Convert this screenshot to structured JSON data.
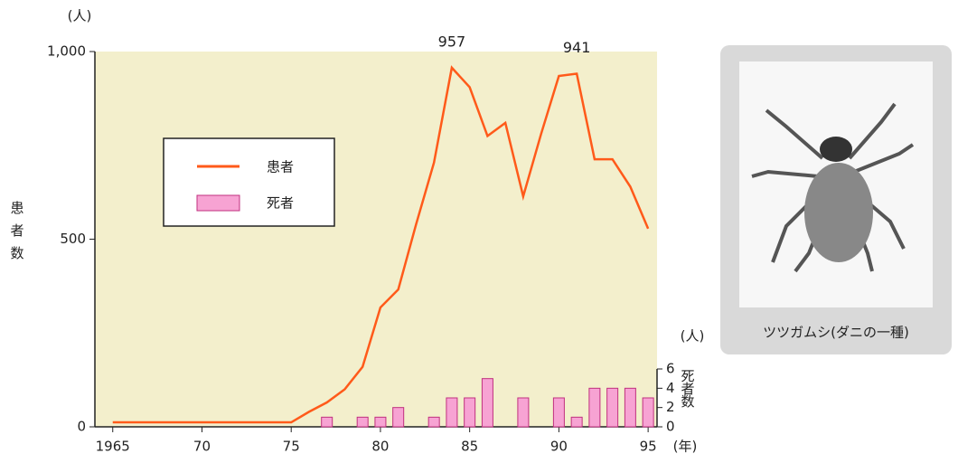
{
  "chart_data": {
    "type": "line-bar",
    "y_unit": "(人)",
    "y2_unit": "(人)",
    "ylabel": "患者数",
    "y2label": "死者数",
    "xlabel": "(年)",
    "caption": "ツツガムシ(ダニの一種)",
    "xlim": [
      1964,
      1995.5
    ],
    "ylim": [
      0,
      1000
    ],
    "y2lim": [
      0,
      6
    ],
    "xticks": [
      {
        "value": 1965,
        "label": "1965"
      },
      {
        "value": 1970,
        "label": "70"
      },
      {
        "value": 1975,
        "label": "75"
      },
      {
        "value": 1980,
        "label": "80"
      },
      {
        "value": 1985,
        "label": "85"
      },
      {
        "value": 1990,
        "label": "90"
      },
      {
        "value": 1995,
        "label": "95"
      }
    ],
    "yticks": [
      0,
      500,
      {
        "value": 1000,
        "label": "1,000"
      }
    ],
    "y2ticks": [
      0,
      2,
      4,
      6
    ],
    "background": "#f3efcc",
    "annotated_points": [
      19,
      26
    ],
    "series": [
      {
        "name": "患者",
        "kind": "line",
        "color": "#ff5a1a",
        "x": [
          1965,
          1966,
          1967,
          1968,
          1969,
          1970,
          1971,
          1972,
          1973,
          1974,
          1975,
          1976,
          1977,
          1978,
          1979,
          1980,
          1981,
          1982,
          1983,
          1984,
          1985,
          1986,
          1987,
          1988,
          1989,
          1990,
          1991,
          1992,
          1993,
          1994,
          1995
        ],
        "values": [
          12,
          12,
          12,
          12,
          12,
          12,
          12,
          12,
          12,
          12,
          12,
          40,
          65,
          100,
          160,
          318,
          366,
          540,
          704,
          957,
          905,
          775,
          810,
          614,
          780,
          935,
          941,
          713,
          713,
          640,
          528
        ]
      },
      {
        "name": "死者",
        "kind": "bar",
        "axis": "y2",
        "color": "#f7a3d3",
        "x": [
          1977,
          1979,
          1980,
          1981,
          1983,
          1984,
          1985,
          1986,
          1988,
          1990,
          1991,
          1992,
          1993,
          1994,
          1995
        ],
        "values": [
          1,
          1,
          1,
          2,
          1,
          3,
          3,
          5,
          3,
          3,
          1,
          4,
          4,
          4,
          3
        ]
      }
    ]
  }
}
